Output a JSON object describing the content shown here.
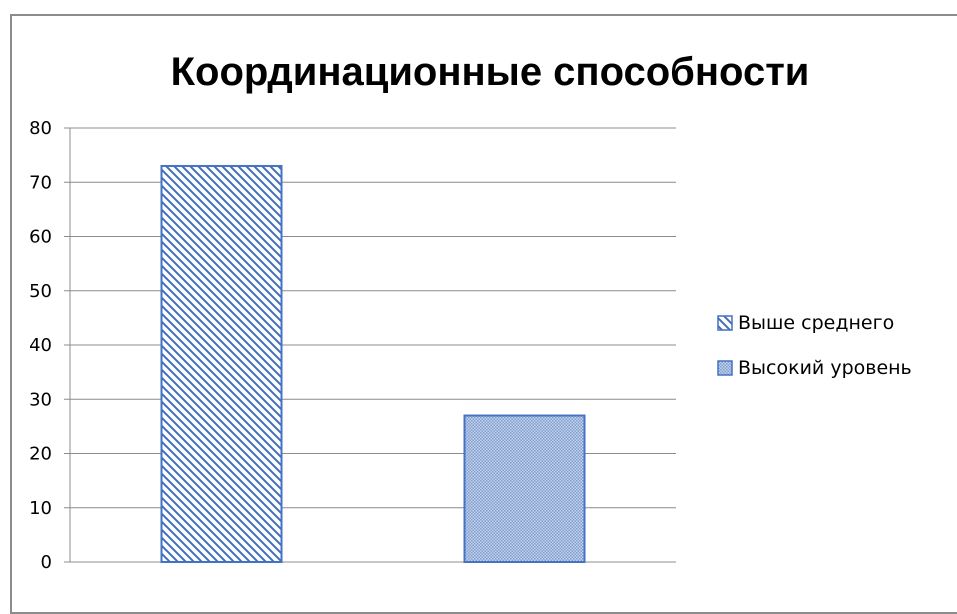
{
  "chart_data": {
    "type": "bar",
    "title": "Координационные способности",
    "xlabel": "",
    "ylabel": "",
    "ylim": [
      0,
      80
    ],
    "yticks": [
      0,
      10,
      20,
      30,
      40,
      50,
      60,
      70,
      80
    ],
    "grid": true,
    "legend_position": "right",
    "series": [
      {
        "name": "Выше среднего",
        "value": 73,
        "pattern": "diagonal-stripes",
        "color": "#4472C4"
      },
      {
        "name": "Высокий уровень",
        "value": 27,
        "pattern": "fine-dots",
        "color": "#4472C4"
      }
    ]
  }
}
